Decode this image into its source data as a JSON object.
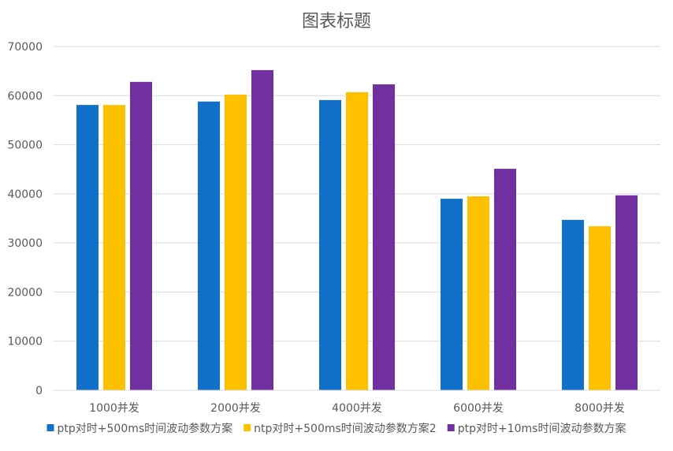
{
  "chart_data": {
    "type": "bar",
    "title": "图表标题",
    "xlabel": "",
    "ylabel": "",
    "categories": [
      "1000并发",
      "2000并发",
      "4000并发",
      "6000并发",
      "8000并发"
    ],
    "series": [
      {
        "name": "ptp对时+500ms时间波动参数方案",
        "color": "#1170CA",
        "values": [
          58100,
          58800,
          59100,
          39000,
          34700
        ]
      },
      {
        "name": "ntp对时+500ms时间波动参数方案2",
        "color": "#FFC000",
        "values": [
          58100,
          60200,
          60700,
          39500,
          33400
        ]
      },
      {
        "name": "ptp对时+10ms时间波动参数方案",
        "color": "#7030A0",
        "values": [
          62800,
          65200,
          62300,
          45100,
          39700
        ]
      }
    ],
    "ylim": [
      0,
      70000
    ],
    "yticks": [
      0,
      10000,
      20000,
      30000,
      40000,
      50000,
      60000,
      70000
    ],
    "grid": true,
    "legend": "bottom"
  }
}
